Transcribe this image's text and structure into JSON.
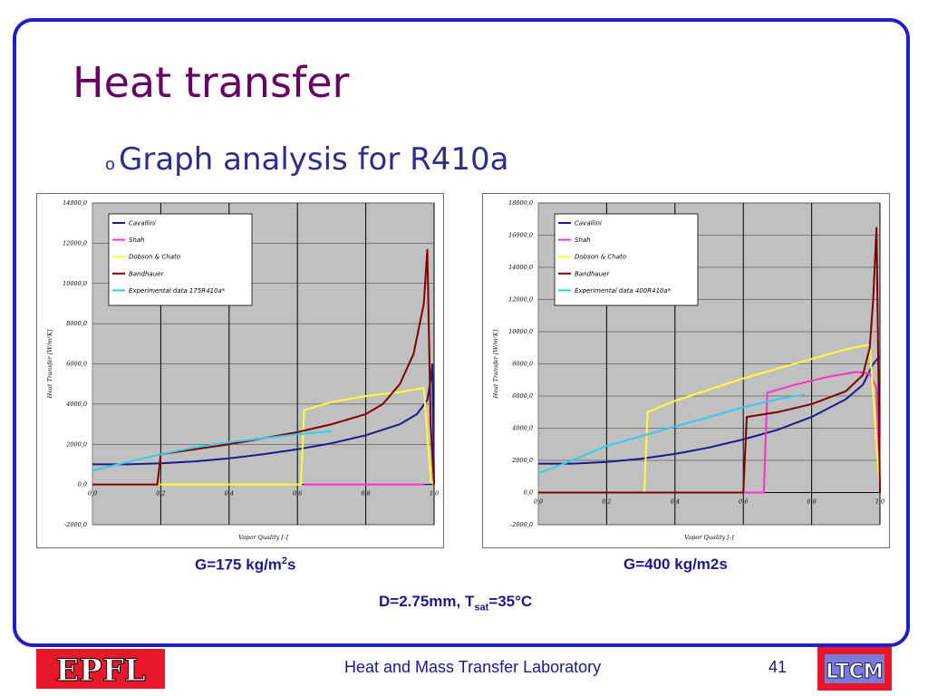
{
  "slide": {
    "title": "Heat transfer",
    "bullet": "Graph analysis for R410a",
    "bullet_marker": "o",
    "caption_left": "G=175 kg/m",
    "caption_left_sup": "2",
    "caption_left_tail": "s",
    "caption_right": "G=400 kg/m2s",
    "caption_bottom_prefix": "D=2.75mm, T",
    "caption_bottom_sub": "sat",
    "caption_bottom_suffix": "=35°C",
    "footer": "Heat and Mass Transfer Laboratory",
    "page_number": "41",
    "logo_left_text": "EPFL",
    "logo_right_text": "LTCM",
    "frame_color": "#1f1fc8",
    "title_color": "#660066"
  },
  "chart_data": [
    {
      "type": "line",
      "xlabel": "Vapor Quality [-]",
      "ylabel": "Heat Transfer [W/m²K]",
      "xlim": [
        0.0,
        1.0
      ],
      "ylim": [
        -2000.0,
        14000.0
      ],
      "yticks": [
        14000,
        12000,
        10000,
        8000,
        6000,
        4000,
        2000,
        0,
        -2000
      ],
      "ytick_labels": [
        "14000,0",
        "12000,0",
        "10000,0",
        "8000,0",
        "6000,0",
        "4000,0",
        "2000,0",
        "0,0",
        "-2000,0"
      ],
      "xticks": [
        0,
        0.2,
        0.4,
        0.6,
        0.8,
        1.0
      ],
      "xtick_labels": [
        "0,0",
        "0,2",
        "0,4",
        "0,6",
        "0,8",
        "1,0"
      ],
      "grid": true,
      "legend_position": "top-left",
      "series": [
        {
          "name": "Cavallini",
          "color": "#1a1a8c",
          "points": [
            [
              0,
              1000
            ],
            [
              0.1,
              1000
            ],
            [
              0.2,
              1050
            ],
            [
              0.3,
              1150
            ],
            [
              0.4,
              1300
            ],
            [
              0.5,
              1500
            ],
            [
              0.6,
              1750
            ],
            [
              0.7,
              2050
            ],
            [
              0.8,
              2450
            ],
            [
              0.9,
              3000
            ],
            [
              0.95,
              3500
            ],
            [
              0.98,
              4200
            ],
            [
              0.99,
              5200
            ],
            [
              0.995,
              6000
            ],
            [
              1.0,
              0
            ]
          ]
        },
        {
          "name": "Shah",
          "color": "#ff33cc",
          "points": [
            [
              0.62,
              0
            ],
            [
              0.97,
              0
            ]
          ]
        },
        {
          "name": "Dobson & Chato",
          "color": "#ffff33",
          "points": [
            [
              0,
              0
            ],
            [
              0.61,
              0
            ],
            [
              0.62,
              3700
            ],
            [
              0.7,
              4100
            ],
            [
              0.8,
              4400
            ],
            [
              0.9,
              4600
            ],
            [
              0.97,
              4800
            ],
            [
              0.99,
              200
            ],
            [
              1.0,
              0
            ]
          ]
        },
        {
          "name": "Bandhauer",
          "color": "#7f0000",
          "points": [
            [
              0,
              0
            ],
            [
              0.19,
              0
            ],
            [
              0.2,
              1500
            ],
            [
              0.3,
              1750
            ],
            [
              0.4,
              2000
            ],
            [
              0.5,
              2300
            ],
            [
              0.6,
              2600
            ],
            [
              0.7,
              3000
            ],
            [
              0.8,
              3500
            ],
            [
              0.85,
              4000
            ],
            [
              0.9,
              5000
            ],
            [
              0.94,
              6500
            ],
            [
              0.97,
              9000
            ],
            [
              0.98,
              11700
            ],
            [
              0.99,
              3000
            ],
            [
              1.0,
              0
            ]
          ]
        },
        {
          "name": "Experimental data 175R410a*",
          "color": "#33ccee",
          "points": [
            [
              0,
              700
            ],
            [
              0.1,
              1100
            ],
            [
              0.2,
              1500
            ],
            [
              0.3,
              1850
            ],
            [
              0.4,
              2100
            ],
            [
              0.5,
              2300
            ],
            [
              0.6,
              2500
            ],
            [
              0.7,
              2650
            ]
          ]
        }
      ]
    },
    {
      "type": "line",
      "xlabel": "Vapor Quality [-]",
      "ylabel": "Heat Transfer [W/m²K]",
      "xlim": [
        0.0,
        1.0
      ],
      "ylim": [
        -2000.0,
        18000.0
      ],
      "yticks": [
        18000,
        16000,
        14000,
        12000,
        10000,
        8000,
        6000,
        4000,
        2000,
        0,
        -2000
      ],
      "ytick_labels": [
        "18000,0",
        "16000,0",
        "14000,0",
        "12000,0",
        "10000,0",
        "8000,0",
        "6000,0",
        "4000,0",
        "2000,0",
        "0,0",
        "-2000,0"
      ],
      "xticks": [
        0,
        0.2,
        0.4,
        0.6,
        0.8,
        1.0
      ],
      "xtick_labels": [
        "0,0",
        "0,2",
        "0,4",
        "0,6",
        "0,8",
        "1,0"
      ],
      "grid": true,
      "legend_position": "top-left",
      "series": [
        {
          "name": "Cavallini",
          "color": "#1a1a8c",
          "points": [
            [
              0,
              1800
            ],
            [
              0.1,
              1800
            ],
            [
              0.2,
              1900
            ],
            [
              0.3,
              2100
            ],
            [
              0.4,
              2400
            ],
            [
              0.5,
              2800
            ],
            [
              0.6,
              3300
            ],
            [
              0.7,
              3900
            ],
            [
              0.8,
              4700
            ],
            [
              0.9,
              5800
            ],
            [
              0.95,
              6700
            ],
            [
              0.98,
              8000
            ],
            [
              1.0,
              8500
            ]
          ]
        },
        {
          "name": "Shah",
          "color": "#ff33cc",
          "points": [
            [
              0,
              0
            ],
            [
              0.66,
              0
            ],
            [
              0.67,
              6200
            ],
            [
              0.75,
              6700
            ],
            [
              0.85,
              7200
            ],
            [
              0.93,
              7500
            ],
            [
              0.97,
              7400
            ],
            [
              0.99,
              6500
            ],
            [
              1.0,
              0
            ]
          ]
        },
        {
          "name": "Dobson & Chato",
          "color": "#ffff33",
          "points": [
            [
              0,
              0
            ],
            [
              0.31,
              0
            ],
            [
              0.32,
              5000
            ],
            [
              0.4,
              5700
            ],
            [
              0.5,
              6400
            ],
            [
              0.6,
              7100
            ],
            [
              0.7,
              7700
            ],
            [
              0.8,
              8300
            ],
            [
              0.9,
              8900
            ],
            [
              0.97,
              9200
            ],
            [
              1.0,
              0
            ]
          ]
        },
        {
          "name": "Bandhauer",
          "color": "#7f0000",
          "points": [
            [
              0,
              0
            ],
            [
              0.6,
              0
            ],
            [
              0.61,
              4700
            ],
            [
              0.7,
              5000
            ],
            [
              0.8,
              5500
            ],
            [
              0.9,
              6300
            ],
            [
              0.95,
              7300
            ],
            [
              0.97,
              9000
            ],
            [
              0.98,
              12000
            ],
            [
              0.99,
              16500
            ],
            [
              1.0,
              0
            ]
          ]
        },
        {
          "name": "Experimental data 400R410a*",
          "color": "#33ccee",
          "points": [
            [
              0,
              1200
            ],
            [
              0.1,
              2000
            ],
            [
              0.2,
              2900
            ],
            [
              0.3,
              3500
            ],
            [
              0.4,
              4100
            ],
            [
              0.5,
              4700
            ],
            [
              0.6,
              5300
            ],
            [
              0.7,
              5800
            ],
            [
              0.78,
              6100
            ]
          ]
        }
      ]
    }
  ]
}
